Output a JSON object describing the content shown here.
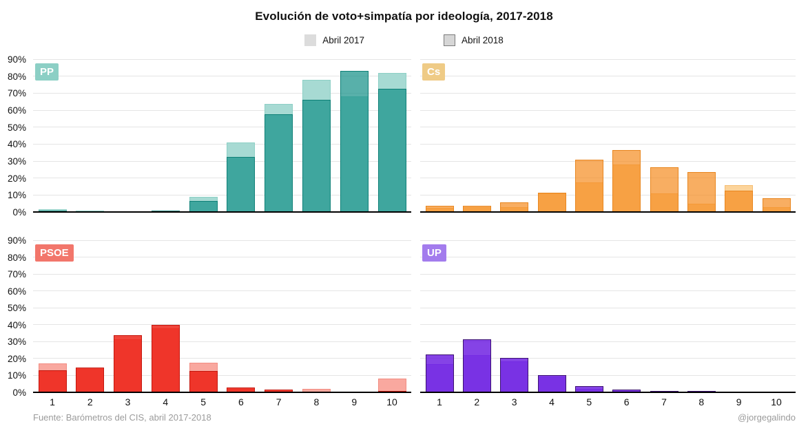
{
  "title": "Evolución de voto+simpatía por ideología, 2017-2018",
  "legend": {
    "items": [
      {
        "label": "Abril 2017",
        "swatch": "#dcdcdc",
        "bordered": false,
        "swatch_border": "#b5b5b5"
      },
      {
        "label": "Abril 2018",
        "swatch": "#d6d6d6",
        "bordered": true,
        "swatch_border": "#7a7a7a"
      }
    ]
  },
  "axes": {
    "y_ticks": [
      "0%",
      "10%",
      "20%",
      "30%",
      "40%",
      "50%",
      "60%",
      "70%",
      "80%",
      "90%"
    ],
    "x_ticks": [
      "1",
      "2",
      "3",
      "4",
      "5",
      "6",
      "7",
      "8",
      "9",
      "10"
    ],
    "ylim": [
      0,
      90
    ]
  },
  "chart_data": [
    {
      "type": "bar",
      "title": "PP",
      "categories": [
        1,
        2,
        3,
        4,
        5,
        6,
        7,
        8,
        9,
        10
      ],
      "ylim": [
        0,
        90
      ],
      "colors": {
        "label_bg": "#8ccfc5",
        "fill_2017": "#a7dad3",
        "border_2017": "#8ccfc5",
        "fill_2018": "rgba(23,146,137,0.72)",
        "border_2018": "#0e8077"
      },
      "series": [
        {
          "name": "Abril 2017",
          "values": [
            1.5,
            1,
            0,
            0.5,
            9,
            41,
            63.5,
            78,
            68,
            82
          ]
        },
        {
          "name": "Abril 2018",
          "values": [
            1,
            0.5,
            0,
            1,
            6.5,
            32.5,
            57.5,
            66,
            83,
            72.5
          ]
        }
      ]
    },
    {
      "type": "bar",
      "title": "Cs",
      "categories": [
        1,
        2,
        3,
        4,
        5,
        6,
        7,
        8,
        9,
        10
      ],
      "ylim": [
        0,
        90
      ],
      "colors": {
        "label_bg": "#efcb86",
        "fill_2017": "#fcd49b",
        "border_2017": "#f5bd72",
        "fill_2018": "rgba(245,139,31,0.70)",
        "border_2018": "#e8861f"
      },
      "series": [
        {
          "name": "Abril 2017",
          "values": [
            2.5,
            3,
            3,
            11,
            17.5,
            28,
            11,
            5,
            16,
            3
          ]
        },
        {
          "name": "Abril 2018",
          "values": [
            3.5,
            3.5,
            5.5,
            11.5,
            31,
            36.5,
            26.5,
            23.5,
            12.5,
            8
          ]
        }
      ]
    },
    {
      "type": "bar",
      "title": "PSOE",
      "categories": [
        1,
        2,
        3,
        4,
        5,
        6,
        7,
        8,
        9,
        10
      ],
      "ylim": [
        0,
        90
      ],
      "colors": {
        "label_bg": "#f2766b",
        "fill_2017": "#f9a89f",
        "border_2017": "#f28d82",
        "fill_2018": "rgba(237,28,16,0.82)",
        "border_2018": "#c3150c"
      },
      "series": [
        {
          "name": "Abril 2017",
          "values": [
            17,
            14,
            31.5,
            38,
            17.5,
            2,
            1,
            2,
            0,
            8
          ]
        },
        {
          "name": "Abril 2018",
          "values": [
            13,
            14.5,
            34,
            40,
            12.5,
            3,
            1.5,
            0.5,
            0,
            1
          ]
        }
      ]
    },
    {
      "type": "bar",
      "title": "UP",
      "categories": [
        1,
        2,
        3,
        4,
        5,
        6,
        7,
        8,
        9,
        10
      ],
      "ylim": [
        0,
        90
      ],
      "colors": {
        "label_bg": "#a37ced",
        "fill_2017": "#bd9ef1",
        "border_2017": "#a37ced",
        "fill_2018": "rgba(106,26,224,0.82)",
        "border_2018": "#3a1070"
      },
      "series": [
        {
          "name": "Abril 2017",
          "values": [
            16.5,
            22,
            18.5,
            9.5,
            2,
            1,
            1,
            1,
            0,
            0
          ]
        },
        {
          "name": "Abril 2018",
          "values": [
            22.5,
            31.5,
            20.5,
            10,
            3.5,
            1.5,
            1,
            1,
            0,
            0
          ]
        }
      ]
    }
  ],
  "footer": {
    "source": "Fuente: Barómetros del CIS, abril 2017-2018",
    "credit": "@jorgegalindo"
  }
}
